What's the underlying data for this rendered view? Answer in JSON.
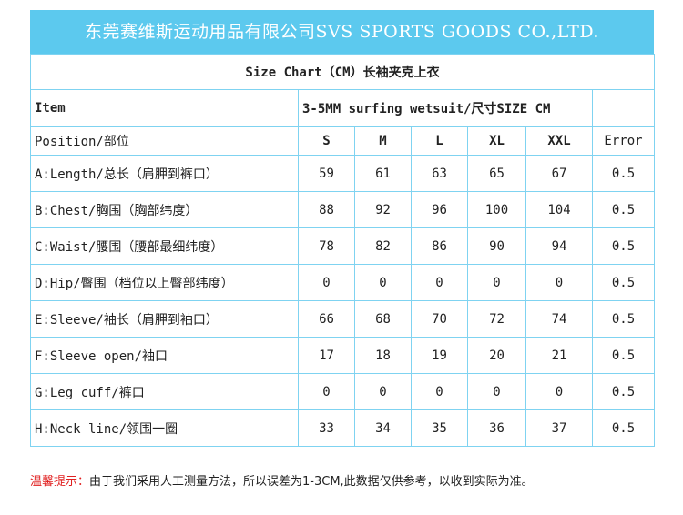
{
  "banner": "东莞赛维斯运动用品有限公司SVS SPORTS GOODS CO.,LTD.",
  "title": "Size Chart（CM）长袖夹克上衣",
  "header": {
    "item": "Item",
    "product": "3-5MM surfing wetsuit/尺寸SIZE CM"
  },
  "columns": {
    "position": "Position/部位",
    "sizes": [
      "S",
      "M",
      "L",
      "XL",
      "XXL"
    ],
    "error": "Error"
  },
  "rows": [
    {
      "label": "A:Length/总长（肩胛到裤口）",
      "values": [
        "59",
        "61",
        "63",
        "65",
        "67"
      ],
      "error": "0.5"
    },
    {
      "label": "B:Chest/胸围（胸部纬度）",
      "values": [
        "88",
        "92",
        "96",
        "100",
        "104"
      ],
      "error": "0.5"
    },
    {
      "label": "C:Waist/腰围（腰部最细纬度）",
      "values": [
        "78",
        "82",
        "86",
        "90",
        "94"
      ],
      "error": "0.5"
    },
    {
      "label": "D:Hip/臀围（档位以上臀部纬度）",
      "values": [
        "0",
        "0",
        "0",
        "0",
        "0"
      ],
      "error": "0.5"
    },
    {
      "label": "E:Sleeve/袖长（肩胛到袖口）",
      "values": [
        "66",
        "68",
        "70",
        "72",
        "74"
      ],
      "error": "0.5"
    },
    {
      "label": "F:Sleeve open/袖口",
      "values": [
        "17",
        "18",
        "19",
        "20",
        "21"
      ],
      "error": "0.5"
    },
    {
      "label": "G:Leg cuff/裤口",
      "values": [
        "0",
        "0",
        "0",
        "0",
        "0"
      ],
      "error": "0.5"
    },
    {
      "label": "H:Neck line/领围一圈",
      "values": [
        "33",
        "34",
        "35",
        "36",
        "37"
      ],
      "error": "0.5"
    }
  ],
  "note": {
    "warning": "温馨提示：",
    "text": "由于我们采用人工测量方法，所以误差为1-3CM,此数据仅供参考，以收到实际为准。"
  },
  "colors": {
    "banner": "#5cc9ee",
    "border": "#7fd3f1",
    "warning": "#e02020"
  }
}
